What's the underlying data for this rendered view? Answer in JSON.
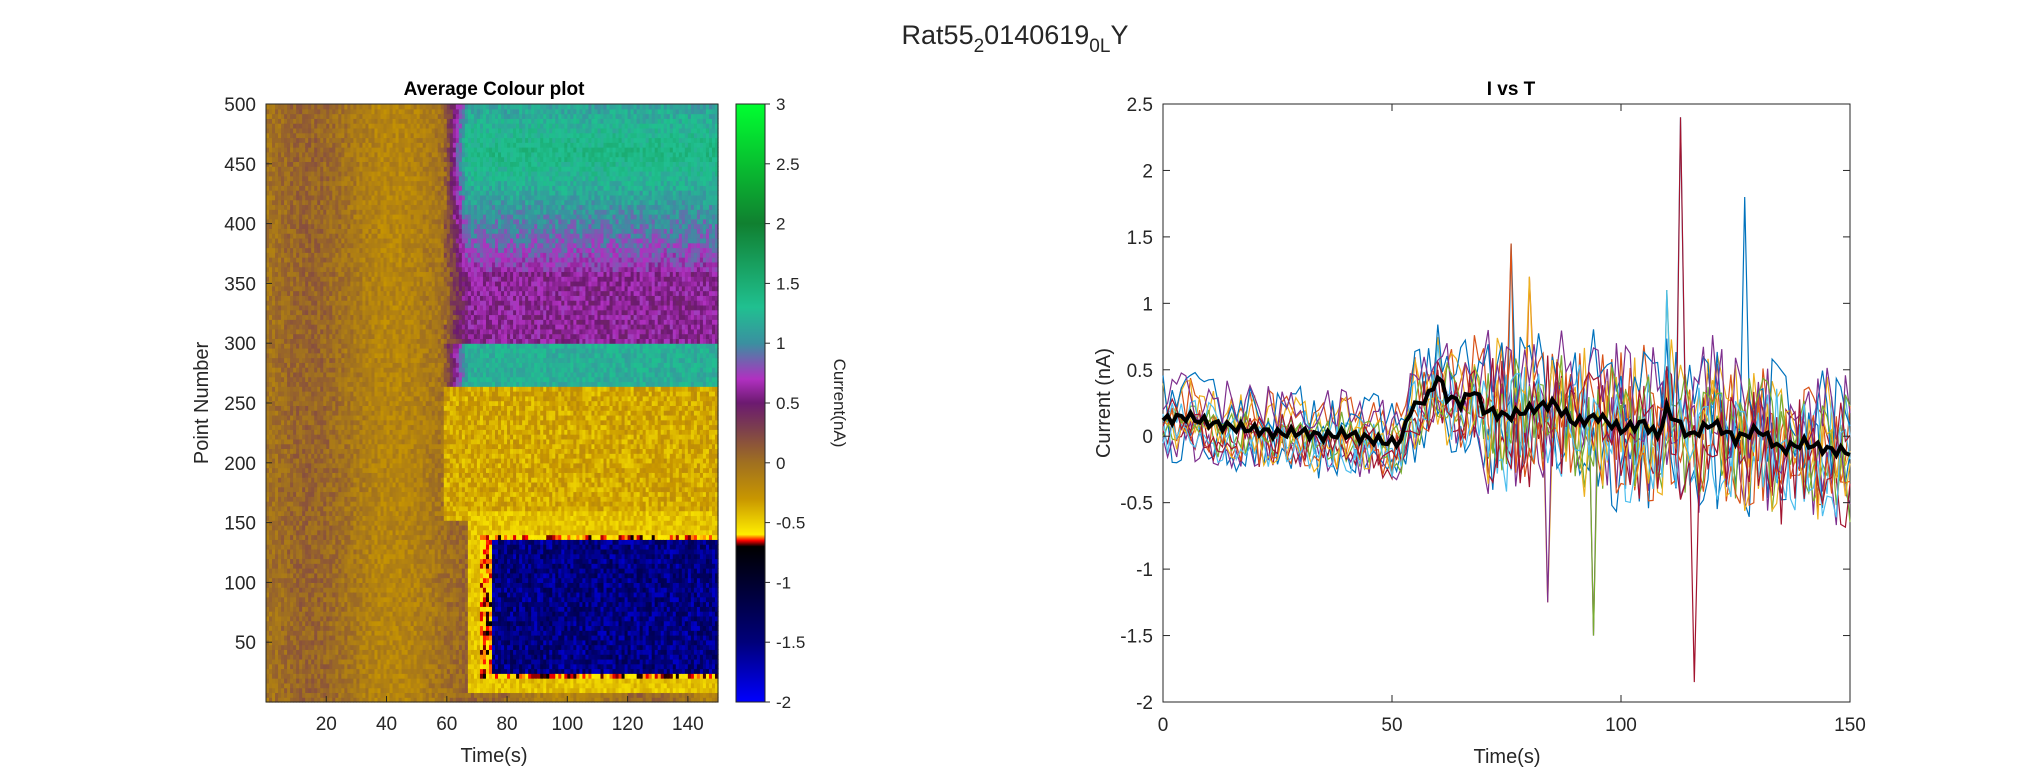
{
  "figure": {
    "title_base": "Rat55",
    "title_sub1": "2",
    "title_mid": "0140619",
    "title_sub2": "0L",
    "title_end": "Y"
  },
  "chart_data": [
    {
      "type": "heatmap",
      "title": "Average Colour plot",
      "xlabel": "Time(s)",
      "ylabel": "Point Number",
      "xlim": [
        0,
        150
      ],
      "ylim": [
        0,
        500
      ],
      "xticks": [
        20,
        40,
        60,
        80,
        100,
        120,
        140
      ],
      "yticks": [
        50,
        100,
        150,
        200,
        250,
        300,
        350,
        400,
        450,
        500
      ],
      "colorbar": {
        "label": "Current(nA)",
        "range": [
          -2,
          3
        ],
        "ticks": [
          -2,
          -1.5,
          -1,
          -0.5,
          0,
          0.5,
          1,
          1.5,
          2,
          2.5,
          3
        ],
        "stops": [
          {
            "value": -2,
            "color": "#0000ff"
          },
          {
            "value": -1.5,
            "color": "#00007a"
          },
          {
            "value": -0.7,
            "color": "#000000"
          },
          {
            "value": -0.65,
            "color": "#ff0000"
          },
          {
            "value": -0.6,
            "color": "#ffee00"
          },
          {
            "value": -0.3,
            "color": "#c89600"
          },
          {
            "value": 0,
            "color": "#a07020"
          },
          {
            "value": 0.3,
            "color": "#7a3c50"
          },
          {
            "value": 0.5,
            "color": "#6c1a70"
          },
          {
            "value": 0.7,
            "color": "#b030c0"
          },
          {
            "value": 1.0,
            "color": "#3a90a0"
          },
          {
            "value": 1.3,
            "color": "#20c090"
          },
          {
            "value": 2.0,
            "color": "#108030"
          },
          {
            "value": 3.0,
            "color": "#00ff30"
          }
        ]
      },
      "regions": [
        {
          "name": "background",
          "value": -0.05
        },
        {
          "name": "upper band",
          "t_start": 62,
          "points": [
            360,
            500
          ],
          "value": 1.4
        },
        {
          "name": "middle band",
          "t_start": 62,
          "points": [
            265,
            300
          ],
          "value": 1.2
        },
        {
          "name": "purple zone",
          "t_start": 62,
          "points": [
            300,
            360
          ],
          "value": 0.6
        },
        {
          "name": "negative blob",
          "t_start": 71,
          "points": [
            20,
            140
          ],
          "value": -1.5
        }
      ]
    },
    {
      "type": "line",
      "title": "I vs T",
      "xlabel": "Time(s)",
      "ylabel": "Current (nA)",
      "xlim": [
        0,
        150
      ],
      "ylim": [
        -2,
        2.5
      ],
      "xticks": [
        0,
        50,
        100,
        150
      ],
      "yticks": [
        -2,
        -1.5,
        -1,
        -0.5,
        0,
        0.5,
        1,
        1.5,
        2,
        2.5
      ],
      "series_colors": [
        "#0072bd",
        "#d95319",
        "#edb120",
        "#7e2f8e",
        "#77ac30",
        "#4dbeee",
        "#a2142f",
        "#0072bd",
        "#d95319",
        "#edb120",
        "#7e2f8e",
        "#77ac30",
        "#4dbeee",
        "#a2142f"
      ],
      "mean_series": {
        "color": "#000000",
        "x": [
          0,
          5,
          10,
          15,
          20,
          25,
          30,
          35,
          40,
          45,
          50,
          52,
          54,
          56,
          58,
          60,
          62,
          65,
          68,
          70,
          75,
          80,
          85,
          90,
          95,
          100,
          105,
          108,
          110,
          115,
          120,
          125,
          130,
          135,
          140,
          145,
          150
        ],
        "y": [
          0.12,
          0.15,
          0.1,
          0.07,
          0.05,
          0.02,
          0.03,
          0.0,
          0.02,
          -0.02,
          -0.05,
          -0.03,
          0.2,
          0.25,
          0.3,
          0.45,
          0.3,
          0.25,
          0.35,
          0.2,
          0.15,
          0.2,
          0.25,
          0.1,
          0.15,
          0.05,
          0.1,
          0.0,
          0.2,
          0.0,
          0.1,
          -0.02,
          0.05,
          -0.1,
          -0.05,
          -0.1,
          -0.12
        ]
      },
      "trial_count": 14,
      "peaks": [
        {
          "x": 76,
          "y": 1.45
        },
        {
          "x": 80,
          "y": 1.2
        },
        {
          "x": 84,
          "y": -1.25
        },
        {
          "x": 94,
          "y": -1.5
        },
        {
          "x": 110,
          "y": 1.1
        },
        {
          "x": 113,
          "y": 2.4
        },
        {
          "x": 116,
          "y": -1.85
        },
        {
          "x": 127,
          "y": 1.8
        }
      ]
    }
  ]
}
